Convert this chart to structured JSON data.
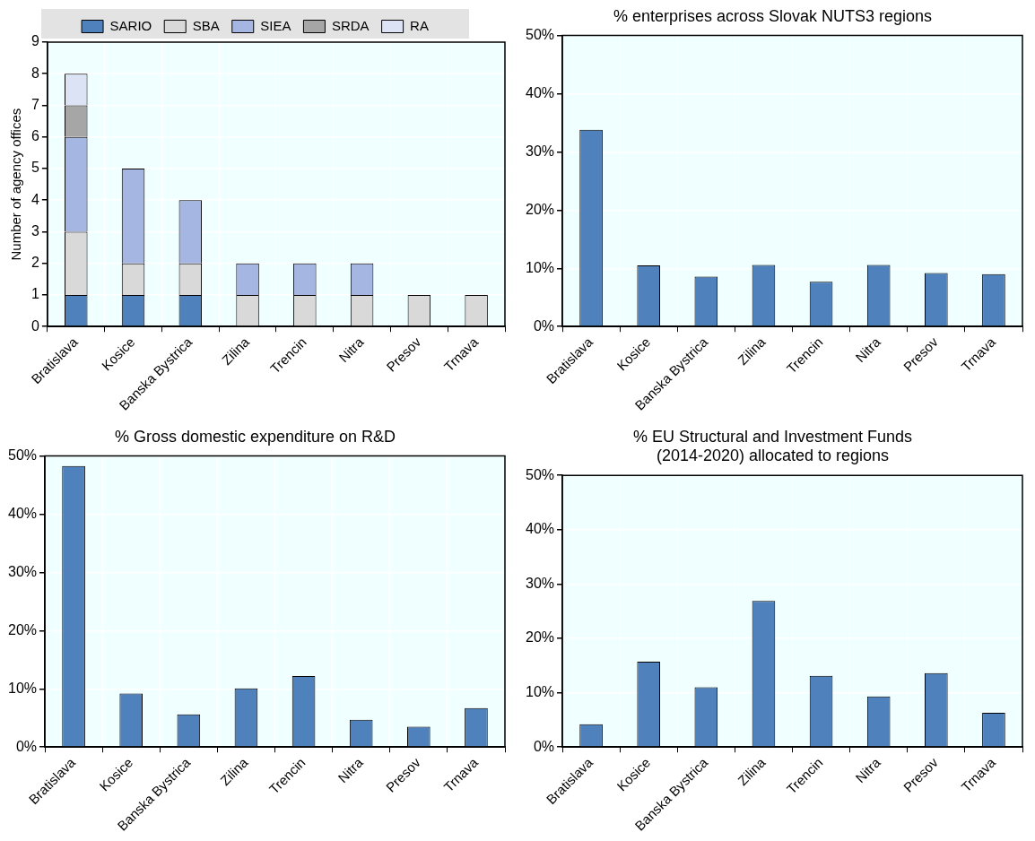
{
  "chart_data": [
    {
      "type": "bar",
      "ylabel": "Number of agency offices",
      "categories": [
        "Bratislava",
        "Kosice",
        "Banska Bystrica",
        "Zilina",
        "Trencin",
        "Nitra",
        "Presov",
        "Trnava"
      ],
      "stacked": true,
      "legend": "top",
      "grid": true,
      "series": [
        {
          "name": "SARIO",
          "color": "#4f81bd",
          "values": [
            1,
            1,
            1,
            0,
            0,
            0,
            0,
            0
          ]
        },
        {
          "name": "SBA",
          "color": "#d9d9d9",
          "values": [
            2,
            1,
            1,
            1,
            1,
            1,
            1,
            1
          ]
        },
        {
          "name": "SIEA",
          "color": "#a6b6e2",
          "values": [
            3,
            3,
            2,
            1,
            1,
            1,
            0,
            0
          ]
        },
        {
          "name": "SRDA",
          "color": "#a6a6a6",
          "values": [
            1,
            0,
            0,
            0,
            0,
            0,
            0,
            0
          ]
        },
        {
          "name": "RA",
          "color": "#dce3f4",
          "values": [
            1,
            0,
            0,
            0,
            0,
            0,
            0,
            0
          ]
        }
      ],
      "ylim": [
        0,
        9
      ],
      "yticks": [
        0,
        1,
        2,
        3,
        4,
        5,
        6,
        7,
        8,
        9
      ]
    },
    {
      "type": "bar",
      "title": "% enterprises across Slovak NUTS3 regions",
      "categories": [
        "Bratislava",
        "Kosice",
        "Banska Bystrica",
        "Zilina",
        "Trencin",
        "Nitra",
        "Presov",
        "Trnava"
      ],
      "grid": true,
      "color": "#4f81bd",
      "values": [
        33.8,
        10.5,
        8.6,
        10.6,
        7.7,
        10.6,
        9.2,
        9.0
      ],
      "ylim": [
        0,
        50
      ],
      "yticks": [
        {
          "value": 0,
          "label": "0%"
        },
        {
          "value": 10,
          "label": "10%"
        },
        {
          "value": 20,
          "label": "20%"
        },
        {
          "value": 30,
          "label": "30%"
        },
        {
          "value": 40,
          "label": "40%"
        },
        {
          "value": 50,
          "label": "50%"
        }
      ]
    },
    {
      "type": "bar",
      "title": "% Gross domestic expenditure on R&D",
      "categories": [
        "Bratislava",
        "Kosice",
        "Banska Bystrica",
        "Zilina",
        "Trencin",
        "Nitra",
        "Presov",
        "Trnava"
      ],
      "grid": true,
      "color": "#4f81bd",
      "values": [
        48.3,
        9.2,
        5.6,
        10.1,
        12.2,
        4.7,
        3.5,
        6.7
      ],
      "ylim": [
        0,
        50
      ],
      "yticks": [
        {
          "value": 0,
          "label": "0%"
        },
        {
          "value": 10,
          "label": "10%"
        },
        {
          "value": 20,
          "label": "20%"
        },
        {
          "value": 30,
          "label": "30%"
        },
        {
          "value": 40,
          "label": "40%"
        },
        {
          "value": 50,
          "label": "50%"
        }
      ]
    },
    {
      "type": "bar",
      "title": "% EU Structural and Investment Funds\n(2014-2020) allocated to regions",
      "categories": [
        "Bratislava",
        "Kosice",
        "Banska Bystrica",
        "Zilina",
        "Trencin",
        "Nitra",
        "Presov",
        "Trnava"
      ],
      "grid": true,
      "color": "#4f81bd",
      "values": [
        4.2,
        15.7,
        11.0,
        26.9,
        13.1,
        9.3,
        13.6,
        6.3
      ],
      "ylim": [
        0,
        50
      ],
      "yticks": [
        {
          "value": 0,
          "label": "0%"
        },
        {
          "value": 10,
          "label": "10%"
        },
        {
          "value": 20,
          "label": "20%"
        },
        {
          "value": 30,
          "label": "30%"
        },
        {
          "value": 40,
          "label": "40%"
        },
        {
          "value": 50,
          "label": "50%"
        }
      ]
    }
  ]
}
